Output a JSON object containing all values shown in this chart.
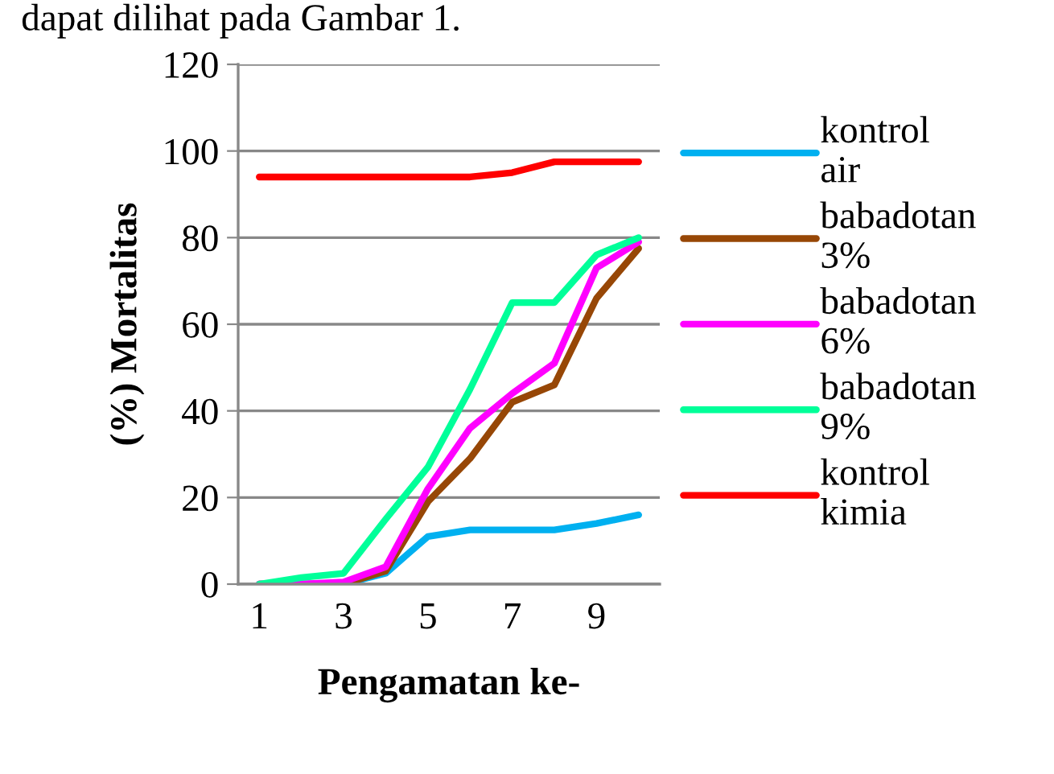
{
  "chart_data": {
    "type": "line",
    "xlabel": "Pengamatan ke-",
    "ylabel": "(%) Mortalitas",
    "annotations": [
      "dapat dilihat pada Gambar 1."
    ],
    "categories": [
      "1",
      null,
      "3",
      null,
      "5",
      null,
      "7",
      null,
      "9",
      null
    ],
    "series": [
      {
        "name": "kontrol air",
        "color": "#00b0f0",
        "values": [
          0,
          0,
          0,
          2.5,
          11,
          12.5,
          12.5,
          12.5,
          14,
          16
        ]
      },
      {
        "name": "babadotan 3%",
        "color": "#974706",
        "values": [
          0,
          0,
          0,
          3,
          19,
          29,
          42,
          46,
          66,
          77.5
        ]
      },
      {
        "name": "babadotan 6%",
        "color": "#ff00ff",
        "values": [
          0,
          0,
          0.5,
          4,
          22,
          36,
          44,
          51,
          73,
          79
        ]
      },
      {
        "name": "babadotan 9%",
        "color": "#00ff99",
        "values": [
          0,
          1.5,
          2.5,
          15,
          27,
          45,
          65,
          65,
          76,
          80
        ]
      },
      {
        "name": "kontrol kimia",
        "color": "#ff0000",
        "values": [
          94,
          94,
          94,
          94,
          94,
          94,
          95,
          97.5,
          97.5,
          97.5
        ]
      }
    ],
    "ylim": [
      0,
      120
    ],
    "yticks": [
      0,
      20,
      40,
      60,
      80,
      100,
      120
    ],
    "grid": "y",
    "legend": "right",
    "marker": "none",
    "line_style": "solid"
  }
}
